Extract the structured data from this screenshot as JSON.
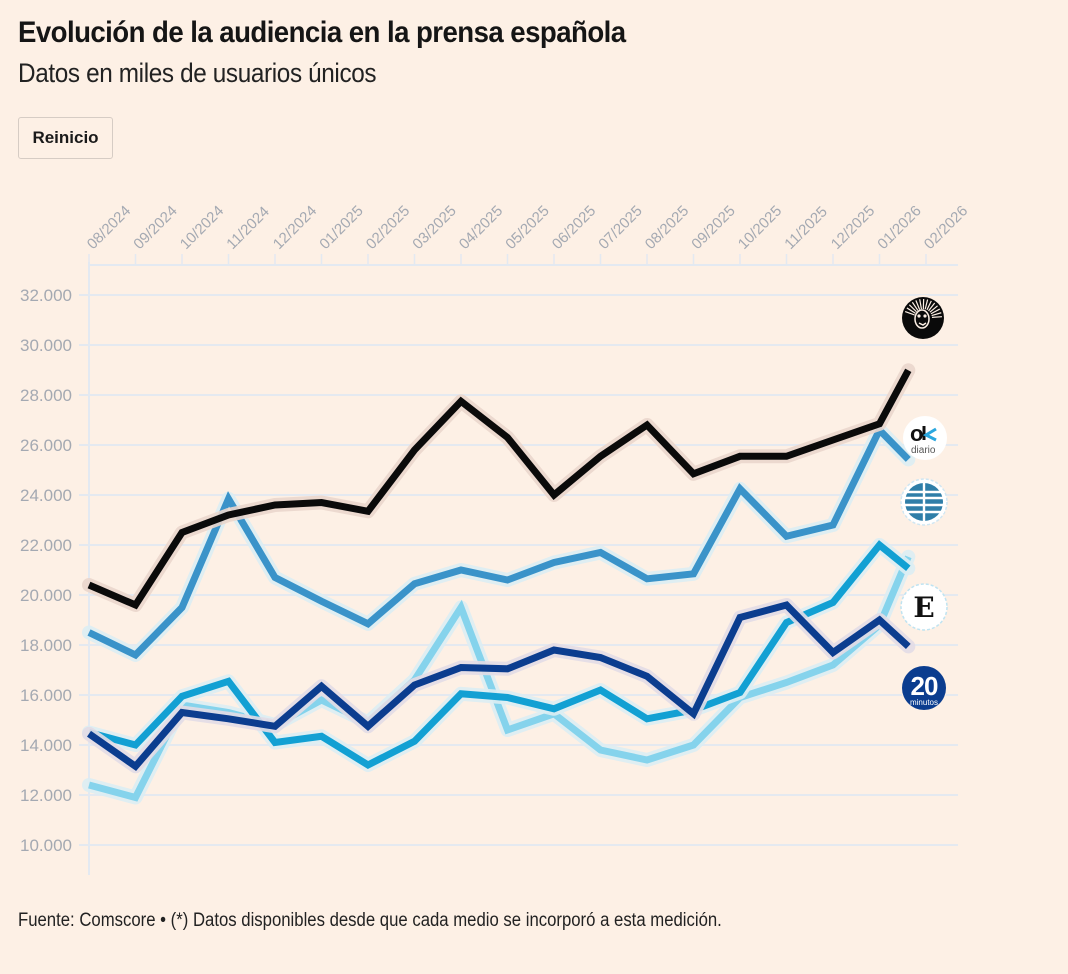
{
  "header": {
    "title": "Evolución de la audiencia en la prensa española",
    "subtitle": "Datos en miles de usuarios únicos",
    "reset_label": "Reinicio"
  },
  "footer": {
    "source": "Fuente: Comscore • (*) Datos disponibles desde que cada medio se incorporó a esta medición."
  },
  "chart_data": {
    "type": "line",
    "title": "Evolución de la audiencia en la prensa española",
    "subtitle": "Datos en miles de usuarios únicos",
    "xlabel": "",
    "ylabel": "",
    "x": [
      "08/2024",
      "09/2024",
      "10/2024",
      "11/2024",
      "12/2024",
      "01/2025",
      "02/2025",
      "03/2025",
      "04/2025",
      "05/2025",
      "06/2025",
      "07/2025",
      "08/2025",
      "09/2025",
      "10/2025",
      "11/2025",
      "12/2025",
      "01/2026",
      "02/2026"
    ],
    "yticks": [
      10000,
      12000,
      14000,
      16000,
      18000,
      20000,
      22000,
      24000,
      26000,
      28000,
      30000,
      32000
    ],
    "ytick_labels": [
      "10.000",
      "12.000",
      "14.000",
      "16.000",
      "18.000",
      "20.000",
      "22.000",
      "24.000",
      "26.000",
      "28.000",
      "30.000",
      "32.000"
    ],
    "ylim": [
      9000,
      33000
    ],
    "grid": true,
    "legend": "logos at line ends (right)",
    "series": [
      {
        "name": "El País",
        "logo": "lion-icon",
        "color": "#0a0a0a",
        "values": [
          20400,
          19600,
          22500,
          23200,
          23600,
          23700,
          23350,
          25800,
          27750,
          26300,
          24000,
          25550,
          26800,
          24850,
          25550,
          25550,
          26200,
          26850,
          30300
        ]
      },
      {
        "name": "OKdiario",
        "logo": "okdiario-icon",
        "color": "#3a93c9",
        "values": [
          18500,
          17600,
          19500,
          23850,
          20700,
          19750,
          18850,
          20450,
          21000,
          20600,
          21300,
          21700,
          20650,
          20850,
          24250,
          22350,
          22800,
          26600,
          24700
        ]
      },
      {
        "name": "El Mundo",
        "logo": "globe-icon",
        "color": "#85d3ec",
        "values": [
          12400,
          11900,
          15600,
          15300,
          14800,
          15800,
          14900,
          16600,
          19500,
          14600,
          15250,
          13800,
          13400,
          14000,
          15900,
          16500,
          17200,
          18800,
          23200
        ]
      },
      {
        "name": "El Español",
        "logo": "e-letter-icon",
        "color": "#12a0d3",
        "values": [
          14500,
          14000,
          15950,
          16550,
          14100,
          14350,
          13200,
          14150,
          16050,
          15900,
          15450,
          16200,
          15050,
          15400,
          16100,
          18900,
          19700,
          22000,
          20500
        ]
      },
      {
        "name": "20 minutos",
        "logo": "20minutos-icon",
        "color": "#0b3d8f",
        "values": [
          14450,
          13150,
          15300,
          15050,
          14750,
          16350,
          14750,
          16400,
          17100,
          17050,
          17800,
          17500,
          16750,
          15250,
          19100,
          19600,
          17700,
          19000,
          17300
        ]
      }
    ]
  }
}
